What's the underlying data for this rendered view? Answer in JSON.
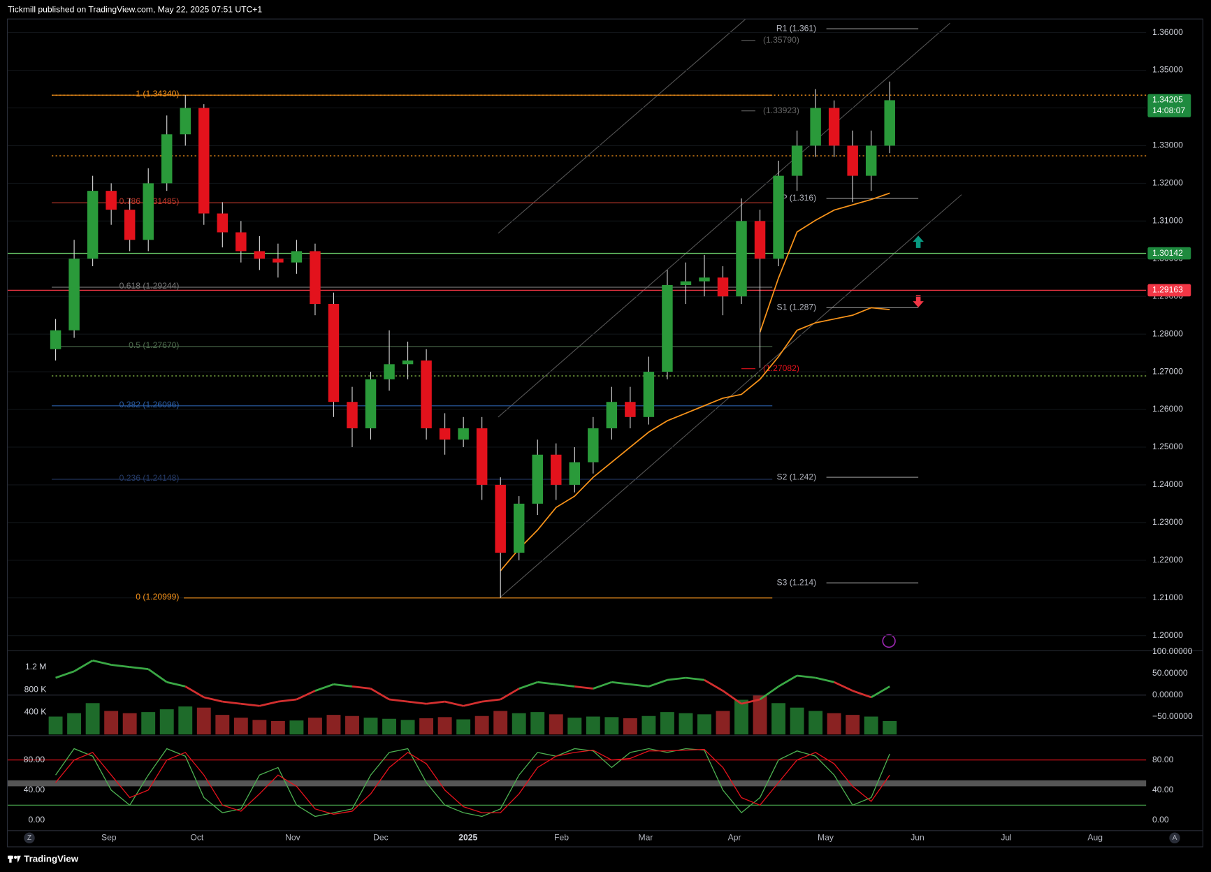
{
  "header": {
    "published": "Tickmill published on TradingView.com, May 22, 2025 07:51 UTC+1",
    "brand": "TradingView"
  },
  "chart_data": {
    "type": "candlestick",
    "x_labels": [
      "Sep",
      "Oct",
      "Nov",
      "Dec",
      "2025",
      "Feb",
      "Mar",
      "Apr",
      "May",
      "Jun",
      "Jul",
      "Aug"
    ],
    "open": [
      1.276,
      1.281,
      1.3,
      1.318,
      1.313,
      1.305,
      1.32,
      1.333,
      1.34,
      1.312,
      1.307,
      1.302,
      1.3,
      1.299,
      1.302,
      1.288,
      1.262,
      1.255,
      1.268,
      1.272,
      1.273,
      1.255,
      1.252,
      1.255,
      1.24,
      1.222,
      1.235,
      1.248,
      1.24,
      1.246,
      1.255,
      1.262,
      1.258,
      1.27,
      1.293,
      1.294,
      1.295,
      1.29,
      1.31,
      1.3,
      1.322,
      1.33,
      1.34,
      1.33,
      1.322,
      1.33
    ],
    "high": [
      1.284,
      1.305,
      1.322,
      1.32,
      1.316,
      1.324,
      1.338,
      1.3434,
      1.341,
      1.315,
      1.31,
      1.306,
      1.304,
      1.305,
      1.304,
      1.291,
      1.266,
      1.27,
      1.281,
      1.278,
      1.276,
      1.259,
      1.258,
      1.258,
      1.242,
      1.237,
      1.252,
      1.251,
      1.25,
      1.258,
      1.266,
      1.266,
      1.274,
      1.297,
      1.299,
      1.301,
      1.298,
      1.316,
      1.313,
      1.326,
      1.334,
      1.345,
      1.342,
      1.334,
      1.334,
      1.347
    ],
    "low": [
      1.273,
      1.279,
      1.298,
      1.309,
      1.302,
      1.302,
      1.318,
      1.33,
      1.309,
      1.303,
      1.299,
      1.297,
      1.295,
      1.296,
      1.285,
      1.258,
      1.25,
      1.252,
      1.265,
      1.268,
      1.252,
      1.248,
      1.25,
      1.236,
      1.20999,
      1.22,
      1.232,
      1.236,
      1.238,
      1.243,
      1.252,
      1.255,
      1.256,
      1.268,
      1.288,
      1.29,
      1.285,
      1.288,
      1.271,
      1.298,
      1.318,
      1.327,
      1.327,
      1.315,
      1.318,
      1.328
    ],
    "close": [
      1.281,
      1.3,
      1.318,
      1.313,
      1.305,
      1.32,
      1.333,
      1.34,
      1.312,
      1.307,
      1.302,
      1.3,
      1.299,
      1.302,
      1.288,
      1.262,
      1.255,
      1.268,
      1.272,
      1.273,
      1.255,
      1.252,
      1.255,
      1.24,
      1.222,
      1.235,
      1.248,
      1.24,
      1.246,
      1.255,
      1.262,
      1.258,
      1.27,
      1.293,
      1.294,
      1.295,
      1.29,
      1.31,
      1.3,
      1.322,
      1.33,
      1.34,
      1.33,
      1.322,
      1.33,
      1.34205
    ],
    "up_color": "#2a9a3a",
    "down_color": "#e3121c",
    "ma": [
      {
        "color": "#f7931a",
        "values": [
          null,
          null,
          null,
          null,
          null,
          null,
          null,
          null,
          null,
          null,
          null,
          null,
          null,
          null,
          null,
          null,
          null,
          null,
          null,
          null,
          null,
          null,
          null,
          null,
          1.2172,
          1.223,
          1.228,
          1.234,
          1.237,
          1.242,
          1.246,
          1.25,
          1.254,
          1.257,
          1.259,
          1.261,
          1.263,
          1.264,
          1.268,
          1.274,
          1.281,
          1.283,
          1.284,
          1.285,
          1.287,
          1.2865
        ]
      },
      {
        "color": "#f7931a",
        "values": [
          null,
          null,
          null,
          null,
          null,
          null,
          null,
          null,
          null,
          null,
          null,
          null,
          null,
          null,
          null,
          null,
          null,
          null,
          null,
          null,
          null,
          null,
          null,
          null,
          null,
          null,
          null,
          null,
          null,
          null,
          null,
          null,
          null,
          null,
          null,
          null,
          null,
          null,
          1.2805,
          1.2949,
          1.3071,
          1.3102,
          1.3129,
          1.3143,
          1.3157,
          1.3174
        ]
      }
    ],
    "ylim": [
      1.1961,
      1.3635
    ],
    "yticks": [
      {
        "value": 1.36,
        "label": "1.36000"
      },
      {
        "value": 1.35,
        "label": "1.35000"
      },
      {
        "value": 1.34,
        "label": "1.34000"
      },
      {
        "value": 1.33,
        "label": "1.33000"
      },
      {
        "value": 1.32,
        "label": "1.32000"
      },
      {
        "value": 1.31,
        "label": "1.31000"
      },
      {
        "value": 1.3,
        "label": "1.30000"
      },
      {
        "value": 1.29,
        "label": "1.29000"
      },
      {
        "value": 1.28,
        "label": "1.28000"
      },
      {
        "value": 1.27,
        "label": "1.27000"
      },
      {
        "value": 1.26,
        "label": "1.26000"
      },
      {
        "value": 1.25,
        "label": "1.25000"
      },
      {
        "value": 1.24,
        "label": "1.24000"
      },
      {
        "value": 1.23,
        "label": "1.23000"
      },
      {
        "value": 1.22,
        "label": "1.22000"
      },
      {
        "value": 1.21,
        "label": "1.21000"
      },
      {
        "value": 1.2,
        "label": "1.20000"
      }
    ],
    "fib_levels": [
      {
        "label": "1 (1.34340)",
        "value": 1.3434,
        "color": "#f7931a"
      },
      {
        "label": "0.786 (1.31485)",
        "value": 1.31485,
        "color": "#c0392b"
      },
      {
        "label": "0.618 (1.29244)",
        "value": 1.29244,
        "color": "#777777"
      },
      {
        "label": "0.5 (1.27670)",
        "value": 1.2767,
        "color": "#4d6b4d"
      },
      {
        "label": "0.382 (1.26096)",
        "value": 1.26096,
        "color": "#2b5fa8"
      },
      {
        "label": "0.236 (1.24148)",
        "value": 1.24148,
        "color": "#253a66"
      },
      {
        "label": "0 (1.20999)",
        "value": 1.20999,
        "color": "#f7931a"
      }
    ],
    "pivots": [
      {
        "label": "R1 (1.361)",
        "value": 1.361
      },
      {
        "label": "P (1.316)",
        "value": 1.316
      },
      {
        "label": "S1 (1.287)",
        "value": 1.287
      },
      {
        "label": "S2 (1.242)",
        "value": 1.242
      },
      {
        "label": "S3 (1.214)",
        "value": 1.214
      }
    ],
    "notes": [
      {
        "label": "(1.35790)",
        "value": 1.3579,
        "color": "#666666"
      },
      {
        "label": "(1.33923)",
        "value": 1.33923,
        "color": "#666666"
      },
      {
        "label": "(1.27082)",
        "value": 1.27082,
        "color": "#e3121c"
      }
    ],
    "lines": [
      {
        "value": 1.30142,
        "color": "#6ccf6c",
        "style": "solid"
      },
      {
        "value": 1.29163,
        "color": "#f23645",
        "style": "solid"
      },
      {
        "value": 1.3273,
        "color": "#f7931a",
        "style": "dotted"
      },
      {
        "value": 1.2689,
        "color": "#8bc34a",
        "style": "dotted"
      },
      {
        "value": 1.3434,
        "color": "#f7931a",
        "style": "dotted"
      }
    ],
    "badges": [
      {
        "label": "1.34205",
        "value": 1.34205,
        "color": "#1e8a3e",
        "sub": "14:08:07"
      },
      {
        "label": "1.30142",
        "value": 1.30142,
        "color": "#1e8a3e"
      },
      {
        "label": "1.29163",
        "value": 1.29163,
        "color": "#f23645"
      }
    ],
    "volume": {
      "values": [
        320000,
        380000,
        560000,
        420000,
        380000,
        400000,
        450000,
        500000,
        480000,
        350000,
        300000,
        260000,
        240000,
        250000,
        300000,
        350000,
        330000,
        300000,
        280000,
        260000,
        290000,
        310000,
        270000,
        330000,
        420000,
        380000,
        400000,
        360000,
        300000,
        320000,
        310000,
        290000,
        330000,
        400000,
        380000,
        360000,
        420000,
        620000,
        700000,
        560000,
        480000,
        420000,
        380000,
        350000,
        320000,
        240000
      ],
      "ylim": [
        0,
        1476000
      ],
      "yticks": [
        {
          "value": 1200000,
          "label": "1.2 M"
        },
        {
          "value": 800000,
          "label": "800 K"
        },
        {
          "value": 400000,
          "label": "400 K"
        }
      ]
    },
    "oscillator": {
      "values": [
        40,
        55,
        80,
        70,
        65,
        60,
        30,
        20,
        -5,
        -15,
        -20,
        -25,
        -15,
        -10,
        10,
        25,
        20,
        15,
        -10,
        -15,
        -20,
        -15,
        -25,
        -15,
        -10,
        15,
        30,
        25,
        20,
        15,
        30,
        25,
        20,
        35,
        40,
        35,
        10,
        -20,
        -10,
        20,
        45,
        40,
        30,
        10,
        -5,
        20
      ],
      "ylim": [
        -91,
        100
      ],
      "yticks": [
        {
          "value": 100,
          "label": "100.00000"
        },
        {
          "value": 50,
          "label": "50.00000"
        },
        {
          "value": 0,
          "label": "0.00000"
        },
        {
          "value": -50,
          "label": "−50.00000"
        }
      ]
    },
    "stochastic": {
      "k": [
        60,
        95,
        85,
        40,
        20,
        60,
        95,
        85,
        30,
        10,
        15,
        60,
        70,
        20,
        5,
        10,
        15,
        60,
        90,
        95,
        50,
        20,
        10,
        5,
        15,
        60,
        90,
        85,
        95,
        92,
        70,
        90,
        95,
        90,
        95,
        93,
        40,
        10,
        30,
        80,
        92,
        85,
        60,
        20,
        30,
        88
      ],
      "d": [
        50,
        80,
        90,
        60,
        30,
        40,
        80,
        90,
        60,
        20,
        12,
        35,
        60,
        45,
        15,
        8,
        12,
        35,
        70,
        90,
        75,
        40,
        18,
        10,
        10,
        35,
        70,
        85,
        90,
        93,
        80,
        82,
        92,
        92,
        93,
        94,
        70,
        30,
        20,
        50,
        80,
        90,
        75,
        45,
        25,
        60
      ],
      "k_color": "#4caf50",
      "d_color": "#e3121c",
      "ylim": [
        -13.3,
        111.8
      ],
      "yticks": [
        {
          "value": 80,
          "label": "80.00"
        },
        {
          "value": 40,
          "label": "40.00"
        },
        {
          "value": 0,
          "label": "0.00"
        }
      ],
      "band": [
        45,
        53
      ],
      "levels": [
        {
          "value": 80,
          "color": "#e3121c"
        },
        {
          "value": 20,
          "color": "#4caf50"
        }
      ]
    },
    "corner_left": "Z",
    "corner_right": "A"
  }
}
